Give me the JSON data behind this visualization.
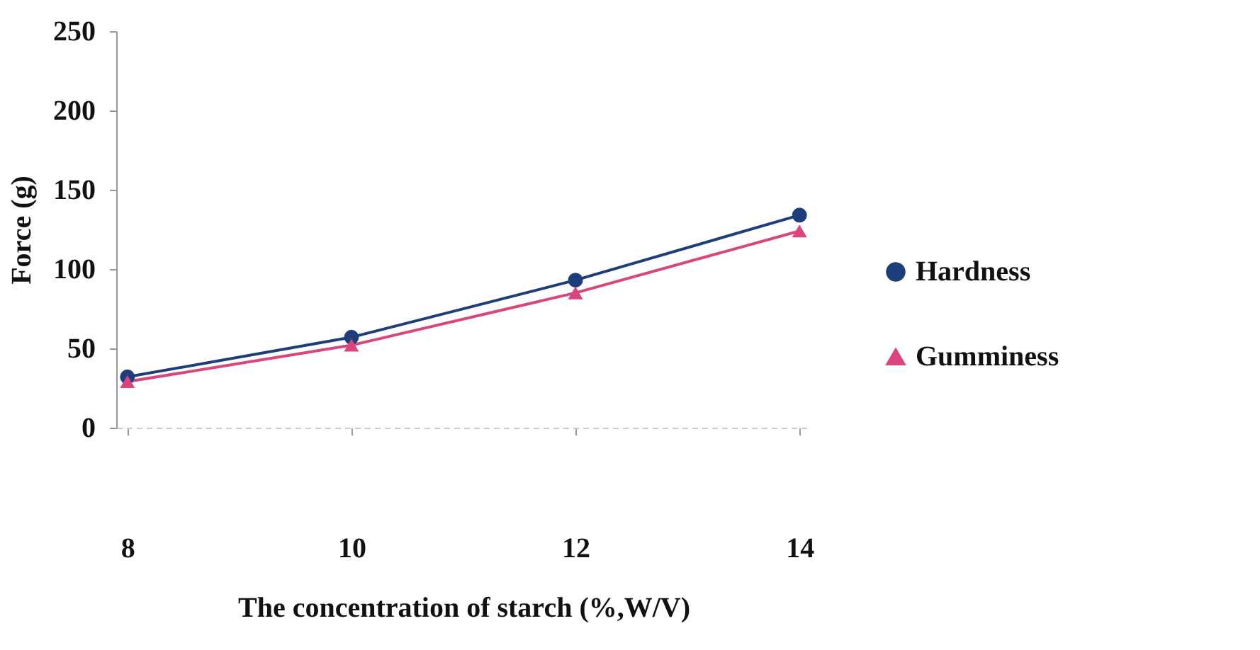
{
  "chart_data": {
    "type": "line",
    "xlabel": "The concentration of starch (%,W/V)",
    "ylabel": "Force (g)",
    "x": [
      8,
      10,
      12,
      14
    ],
    "xlim": [
      7.9,
      14.1
    ],
    "xticks": [
      8,
      10,
      12,
      14
    ],
    "ylim": [
      0,
      250
    ],
    "yticks": [
      0,
      50,
      100,
      150,
      200,
      250
    ],
    "series": [
      {
        "name": "Hardness",
        "color": "#1f3d7a",
        "marker": "circle",
        "values": [
          32,
          57,
          93,
          134
        ]
      },
      {
        "name": "Gumminess",
        "color": "#d9467e",
        "marker": "triangle",
        "values": [
          29,
          52,
          85,
          124
        ]
      }
    ],
    "grid": false,
    "legend": "right",
    "line_style": "solid"
  }
}
